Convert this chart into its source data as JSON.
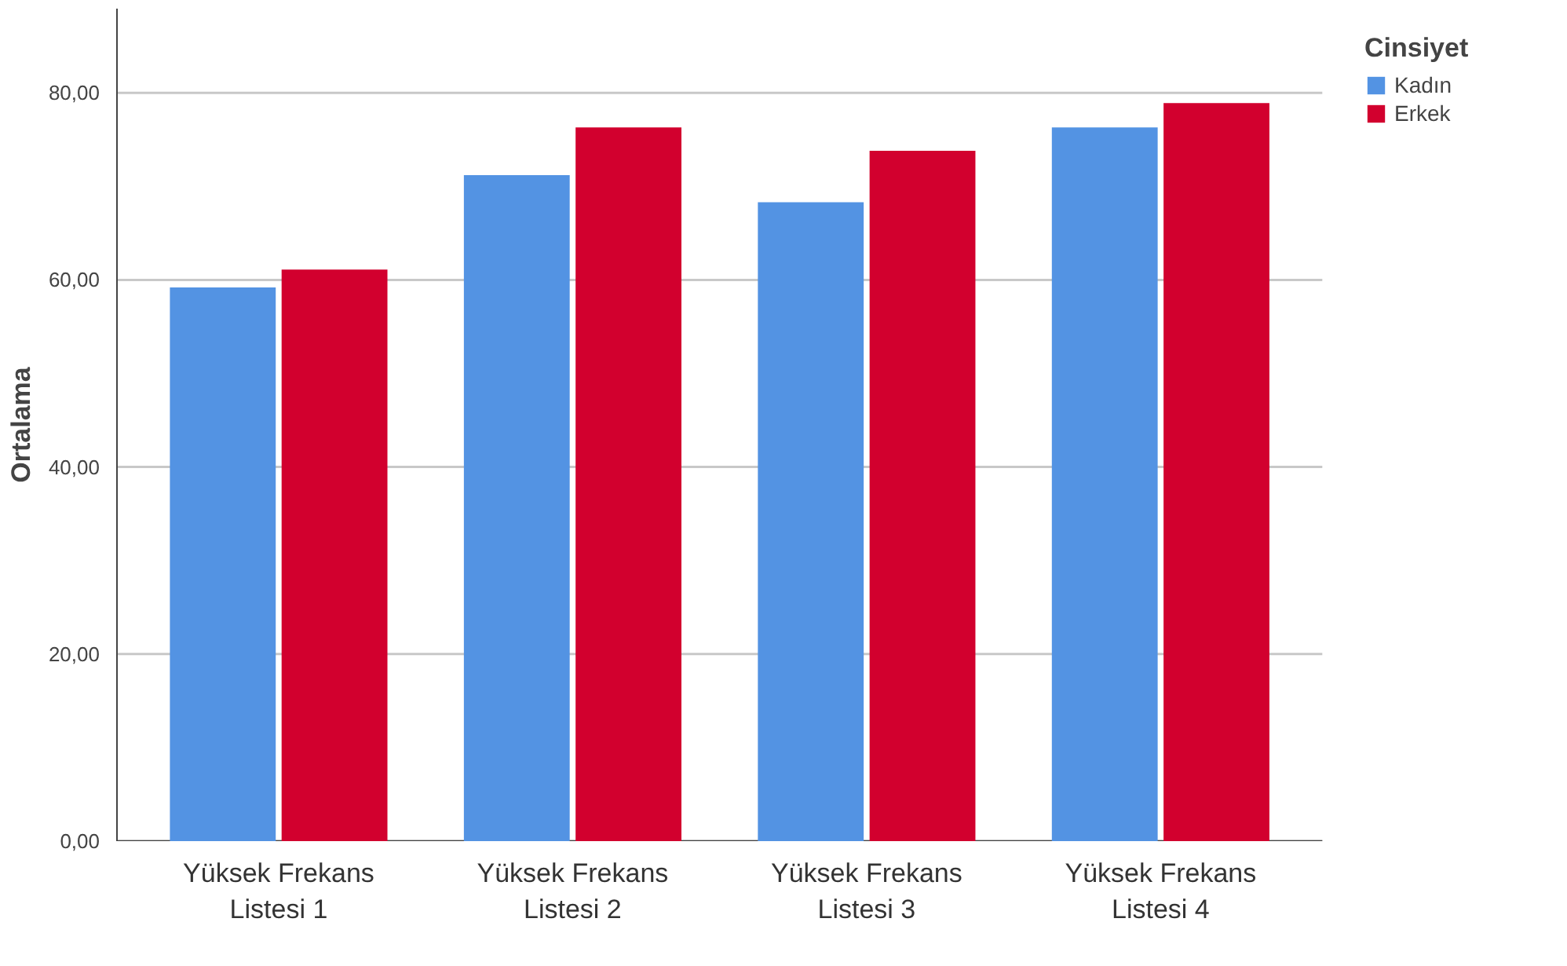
{
  "chart_data": {
    "type": "bar",
    "ylabel": "Ortalama",
    "legend_title": "Cinsiyet",
    "categories": [
      "Yüksek Frekans\nListesi 1",
      "Yüksek Frekans\nListesi 2",
      "Yüksek Frekans\nListesi 3",
      "Yüksek Frekans\nListesi 4"
    ],
    "series": [
      {
        "name": "Kadın",
        "color": "#5393e3",
        "values": [
          59.2,
          71.2,
          68.3,
          76.3
        ]
      },
      {
        "name": "Erkek",
        "color": "#d2002e",
        "values": [
          61.1,
          76.3,
          73.8,
          78.9
        ]
      }
    ],
    "ylim": [
      0,
      89
    ],
    "yticks": [
      {
        "value": 0,
        "label": "0,00"
      },
      {
        "value": 20,
        "label": "20,00"
      },
      {
        "value": 40,
        "label": "40,00"
      },
      {
        "value": 60,
        "label": "60,00"
      },
      {
        "value": 80,
        "label": "80,00"
      }
    ],
    "grid": "y",
    "legend": "top right"
  }
}
